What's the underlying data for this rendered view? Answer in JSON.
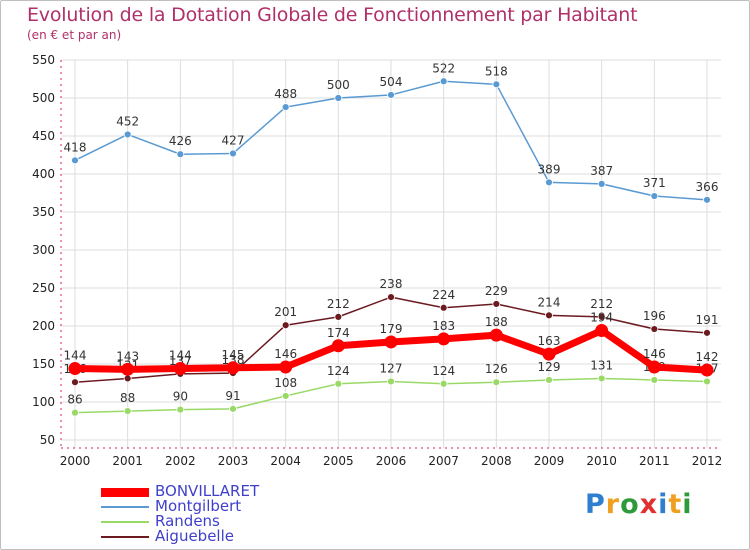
{
  "title": "Evolution de la Dotation Globale de Fonctionnement par Habitant",
  "subtitle": "(en € et par an)",
  "logo": "Proxiti",
  "colors": {
    "title": "#b0306a",
    "axis": "#d9264f",
    "grid": "#dddddd",
    "BONVILLARET": "#ff0000",
    "Montgilbert": "#5a9ad2",
    "Randens": "#99d966",
    "Aiguebelle": "#6b1a20"
  },
  "legend": [
    {
      "name": "BONVILLARET",
      "color": "#ff0000",
      "text_color": "#3f3fcc"
    },
    {
      "name": "Montgilbert",
      "color": "#5a9ad2",
      "text_color": "#3f3fcc"
    },
    {
      "name": "Randens",
      "color": "#99d966",
      "text_color": "#3f3fcc"
    },
    {
      "name": "Aiguebelle",
      "color": "#6b1a20",
      "text_color": "#3f3fcc"
    }
  ],
  "chart_data": {
    "type": "line",
    "title": "Evolution de la Dotation Globale de Fonctionnement par Habitant",
    "subtitle": "(en € et par an)",
    "xlabel": "",
    "ylabel": "",
    "x": [
      "2000",
      "2001",
      "2002",
      "2003",
      "2004",
      "2005",
      "2006",
      "2007",
      "2008",
      "2009",
      "2010",
      "2011",
      "2012"
    ],
    "ylim": [
      50,
      550
    ],
    "yticks": [
      50,
      100,
      150,
      200,
      250,
      300,
      350,
      400,
      450,
      500,
      550
    ],
    "grid": true,
    "legend_position": "bottom-left",
    "series": [
      {
        "name": "Montgilbert",
        "values": [
          418,
          452,
          426,
          427,
          488,
          500,
          504,
          522,
          518,
          389,
          387,
          371,
          366
        ]
      },
      {
        "name": "Randens",
        "values": [
          86,
          88,
          90,
          91,
          108,
          124,
          127,
          124,
          126,
          129,
          131,
          129,
          127
        ]
      },
      {
        "name": "Aiguebelle",
        "values": [
          126,
          131,
          137,
          138,
          201,
          212,
          238,
          224,
          229,
          214,
          212,
          196,
          191
        ]
      },
      {
        "name": "BONVILLARET",
        "values": [
          144,
          143,
          144,
          145,
          146,
          174,
          179,
          183,
          188,
          163,
          194,
          146,
          142
        ],
        "labels": [
          "144",
          "143",
          "144",
          "145",
          "146",
          "174",
          "179",
          "183",
          "188",
          "163",
          "194",
          "146",
          "142"
        ]
      }
    ]
  }
}
